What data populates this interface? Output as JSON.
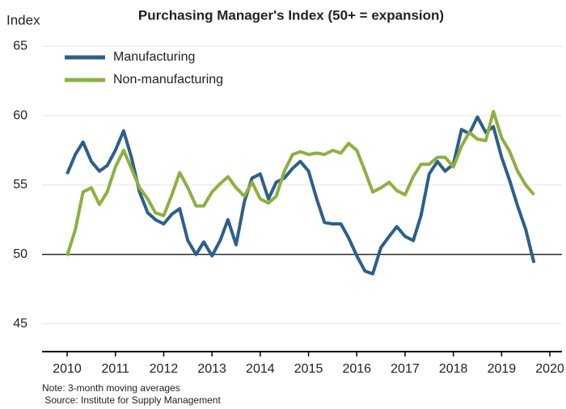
{
  "chart_data": {
    "type": "line",
    "title": "Purchasing Manager's Index (50+ = expansion)",
    "y_label": "Index",
    "notes": [
      "Note: 3-month moving averages",
      " Source: Institute for Supply Management"
    ],
    "x": [
      2010.0,
      2010.17,
      2010.33,
      2010.5,
      2010.67,
      2010.83,
      2011.0,
      2011.17,
      2011.33,
      2011.5,
      2011.67,
      2011.83,
      2012.0,
      2012.17,
      2012.33,
      2012.5,
      2012.67,
      2012.83,
      2013.0,
      2013.17,
      2013.33,
      2013.5,
      2013.67,
      2013.83,
      2014.0,
      2014.17,
      2014.33,
      2014.5,
      2014.67,
      2014.83,
      2015.0,
      2015.17,
      2015.33,
      2015.5,
      2015.67,
      2015.83,
      2016.0,
      2016.17,
      2016.33,
      2016.5,
      2016.67,
      2016.83,
      2017.0,
      2017.17,
      2017.33,
      2017.5,
      2017.67,
      2017.83,
      2018.0,
      2018.17,
      2018.33,
      2018.5,
      2018.67,
      2018.83,
      2019.0,
      2019.17,
      2019.33,
      2019.5,
      2019.67
    ],
    "series": [
      {
        "name": "Manufacturing",
        "color": "#2e5f8a",
        "values": [
          55.8,
          57.2,
          58.1,
          56.7,
          56.0,
          56.4,
          57.5,
          58.9,
          57.0,
          54.5,
          53.0,
          52.5,
          52.2,
          52.9,
          53.3,
          51.0,
          50.0,
          50.9,
          49.9,
          51.0,
          52.5,
          50.7,
          53.8,
          55.5,
          55.8,
          54.0,
          55.2,
          55.5,
          56.2,
          56.7,
          56.0,
          54.0,
          52.3,
          52.2,
          52.2,
          51.2,
          49.9,
          48.8,
          48.6,
          50.5,
          51.3,
          52.0,
          51.3,
          51.0,
          52.8,
          55.8,
          56.7,
          56.0,
          56.5,
          59.0,
          58.7,
          59.9,
          58.8,
          59.2,
          57.0,
          55.3,
          53.5,
          51.8,
          49.4
        ]
      },
      {
        "name": "Non-manufacturing",
        "color": "#8db040",
        "values": [
          49.9,
          51.8,
          54.5,
          54.8,
          53.6,
          54.5,
          56.3,
          57.5,
          56.2,
          54.8,
          54.0,
          53.0,
          52.8,
          54.3,
          55.9,
          54.8,
          53.5,
          53.5,
          54.5,
          55.1,
          55.6,
          54.8,
          54.2,
          55.2,
          54.0,
          53.7,
          54.2,
          56.0,
          57.2,
          57.4,
          57.2,
          57.3,
          57.2,
          57.5,
          57.3,
          58.0,
          57.5,
          56.0,
          54.5,
          54.8,
          55.2,
          54.6,
          54.3,
          55.6,
          56.5,
          56.5,
          57.0,
          57.0,
          56.3,
          57.8,
          58.8,
          58.3,
          58.2,
          60.3,
          58.4,
          57.4,
          56.0,
          55.0,
          54.3
        ]
      }
    ],
    "xlim": [
      2009.48,
      2020.25
    ],
    "xticks": [
      2010,
      2011,
      2012,
      2013,
      2014,
      2015,
      2016,
      2017,
      2018,
      2019,
      2020
    ],
    "ylim": [
      43,
      66
    ],
    "yticks": [
      45,
      50,
      55,
      60,
      65
    ],
    "reference_line": 50,
    "grid": true,
    "legend": "top-left"
  }
}
